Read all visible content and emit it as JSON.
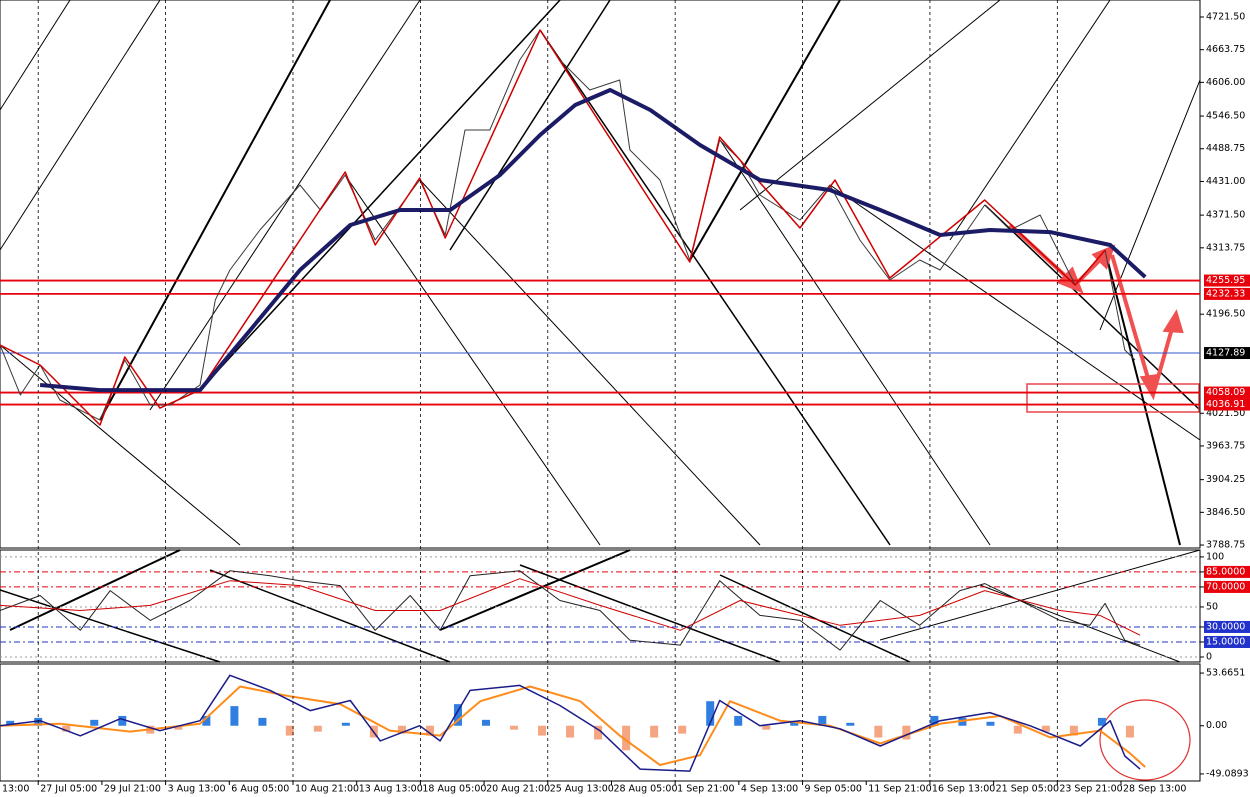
{
  "chart_data": [
    {
      "type": "line",
      "xlim": [
        -0.08,
        18.76
      ],
      "ylim": [
        3783.5,
        4751.5
      ],
      "yticks": [
        {
          "value": 4721.5,
          "label": "4721.50"
        },
        {
          "value": 4663.75,
          "label": "4663.75"
        },
        {
          "value": 4606,
          "label": "4606.00"
        },
        {
          "value": 4546.5,
          "label": "4546.50"
        },
        {
          "value": 4488.75,
          "label": "4488.75"
        },
        {
          "value": 4431,
          "label": "4431.00"
        },
        {
          "value": 4371.5,
          "label": "4371.50"
        },
        {
          "value": 4313.75,
          "label": "4313.75"
        },
        {
          "value": 4196.5,
          "label": "4196.50"
        },
        {
          "value": 4021.5,
          "label": "4021.50"
        },
        {
          "value": 3963.75,
          "label": "3963.75"
        },
        {
          "value": 3904.25,
          "label": "3904.25"
        },
        {
          "value": 3846.5,
          "label": "3846.50"
        },
        {
          "value": 3788.75,
          "label": "3788.75"
        }
      ],
      "lines": [
        {
          "value": 4255.95,
          "color": "#e8000b"
        },
        {
          "value": 4232.33,
          "color": "#e8000b"
        },
        {
          "value": 4127.89,
          "color": "#3355cc"
        },
        {
          "value": 4058.09,
          "color": "#e8000b"
        },
        {
          "value": 4036.91,
          "color": "#e8000b"
        }
      ],
      "series": [
        {
          "color": "#3a3a3a",
          "width": 1,
          "x": [
            -0.08,
            0.24,
            0.55,
            0.86,
            1.49,
            1.88,
            2.28,
            2.59,
            3.06,
            3.3,
            3.53,
            4.0,
            4.63,
            4.95,
            5.34,
            5.81,
            6.51,
            6.91,
            7.22,
            7.61,
            8.08,
            8.4,
            8.71,
            9.18,
            9.65,
            9.81,
            10.28,
            10.75,
            11.22,
            11.54,
            11.85,
            12.48,
            12.95,
            13.42,
            13.89,
            14.36,
            14.68,
            15.38,
            15.78,
            16.25,
            16.8,
            17.27,
            17.58,
            17.74
          ],
          "values": [
            4142.0,
            4053.7,
            4106.7,
            4044.9,
            4009.5,
            4115.5,
            4036.0,
            4036.0,
            4071.3,
            4221.5,
            4274.5,
            4345.2,
            4424.7,
            4380.5,
            4442.3,
            4327.5,
            4433.5,
            4336.4,
            4521.8,
            4521.8,
            4645.5,
            4698.5,
            4645.5,
            4592.5,
            4610.2,
            4486.5,
            4433.5,
            4292.2,
            4504.2,
            4468.8,
            4407.0,
            4362.9,
            4424.7,
            4327.5,
            4256.9,
            4292.2,
            4274.5,
            4389.4,
            4345.2,
            4371.7,
            4248.0,
            4309.8,
            4133.2,
            4115.5
          ]
        },
        {
          "color": "#d10000",
          "width": 1.5,
          "x": [
            -0.08,
            0.55,
            1.49,
            1.88,
            2.43,
            3.06,
            5.34,
            5.81,
            6.51,
            6.91,
            8.4,
            10.75,
            11.22,
            12.48,
            13.03,
            13.89,
            15.38,
            16.8,
            17.27
          ],
          "values": [
            4142.0,
            4106.7,
            4000.7,
            4120.8,
            4030.7,
            4062.5,
            4447.6,
            4318.7,
            4437.1,
            4331.1,
            4698.5,
            4288.7,
            4509.5,
            4348.7,
            4433.5,
            4260.4,
            4398.2,
            4248.0,
            4309.8
          ]
        },
        {
          "color": "#1b1b66",
          "width": 4,
          "x": [
            0.55,
            1.49,
            3.06,
            3.85,
            4.63,
            5.42,
            6.2,
            6.99,
            7.77,
            8.4,
            8.95,
            9.5,
            10.13,
            10.91,
            11.85,
            12.95,
            13.74,
            14.68,
            15.46,
            16.41,
            17.35,
            17.9
          ],
          "values": [
            4071.4,
            4062.5,
            4062.5,
            4168.5,
            4274.5,
            4354.0,
            4380.5,
            4380.5,
            4442.3,
            4513.0,
            4566.0,
            4592.5,
            4557.2,
            4495.3,
            4433.5,
            4415.8,
            4380.5,
            4336.4,
            4345.2,
            4341.6,
            4318.7,
            4262.2
          ]
        }
      ]
    },
    {
      "type": "line",
      "xlim": [
        -0.08,
        18.76
      ],
      "ylim": [
        -5,
        106.9
      ],
      "yticks": [
        100,
        {
          "value": 85,
          "label": "85.0000",
          "color": "#e8000b"
        },
        {
          "value": 70,
          "label": "70.0000",
          "color": "#e8000b"
        },
        50,
        {
          "value": 30,
          "label": "30.0000",
          "color": "#2233cc"
        },
        {
          "value": 15,
          "label": "15.0000",
          "color": "#2233cc"
        },
        0
      ],
      "series": [
        {
          "color": "#222222",
          "width": 1,
          "x": [
            -0.08,
            0.55,
            1.18,
            1.65,
            2.28,
            2.9,
            3.53,
            4.16,
            4.63,
            5.26,
            5.81,
            6.36,
            6.83,
            7.3,
            8.08,
            8.71,
            9.34,
            9.81,
            10.6,
            11.22,
            11.85,
            12.48,
            13.11,
            13.74,
            14.36,
            14.99,
            15.38,
            16.09,
            16.56,
            17.03,
            17.27,
            17.58,
            17.82
          ],
          "values": [
            46.5,
            61.4,
            26.7,
            66.3,
            36.6,
            56.4,
            86.1,
            81.2,
            76.2,
            71.3,
            26.7,
            61.4,
            26.7,
            81.2,
            86.1,
            56.4,
            46.5,
            16.8,
            11.9,
            76.2,
            41.6,
            36.6,
            6.9,
            56.4,
            31.7,
            66.3,
            73.3,
            51.5,
            36.6,
            31.7,
            53.5,
            16.8,
            11.9
          ]
        },
        {
          "color": "#d10000",
          "width": 1,
          "x": [
            -0.08,
            1.18,
            2.28,
            3.53,
            4.63,
            5.81,
            6.83,
            8.08,
            9.34,
            10.6,
            11.54,
            13.11,
            14.36,
            15.38,
            16.56,
            17.19,
            17.82
          ],
          "values": [
            51.5,
            46.5,
            51.5,
            76.2,
            71.3,
            46.5,
            46.5,
            78.2,
            51.5,
            26.7,
            56.4,
            31.7,
            41.6,
            66.3,
            46.5,
            41.6,
            21.8
          ]
        }
      ]
    },
    {
      "type": "macd",
      "xlim": [
        -0.08,
        18.76
      ],
      "ylim": [
        -56.3,
        62.9
      ],
      "yticks": [
        53.6651,
        {
          "value": 0,
          "label": "0.00"
        },
        -49.0893
      ],
      "xticks": [
        {
          "value": -0.48,
          "label": "13:00"
        },
        {
          "value": 0.52,
          "label": "27 Jul 05:00"
        },
        {
          "value": 1.52,
          "label": "29 Jul 21:00"
        },
        {
          "value": 2.52,
          "label": "3 Aug 13:00"
        },
        {
          "value": 3.52,
          "label": "6 Aug 05:00"
        },
        {
          "value": 4.52,
          "label": "10 Aug 21:00"
        },
        {
          "value": 5.52,
          "label": "13 Aug 13:00"
        },
        {
          "value": 6.52,
          "label": "18 Aug 05:00"
        },
        {
          "value": 7.52,
          "label": "20 Aug 21:00"
        },
        {
          "value": 8.52,
          "label": "25 Aug 13:00"
        },
        {
          "value": 9.52,
          "label": "28 Aug 05:00"
        },
        {
          "value": 10.52,
          "label": "1 Sep 21:00"
        },
        {
          "value": 11.52,
          "label": "4 Sep 13:00"
        },
        {
          "value": 12.52,
          "label": "9 Sep 05:00"
        },
        {
          "value": 13.52,
          "label": "11 Sep 21:00"
        },
        {
          "value": 14.52,
          "label": "16 Sep 13:00"
        },
        {
          "value": 15.52,
          "label": "21 Sep 05:00"
        },
        {
          "value": 16.52,
          "label": "23 Sep 21:00"
        },
        {
          "value": 17.52,
          "label": "28 Sep 13:00"
        }
      ],
      "histogram": {
        "color": "#2f7ee0",
        "negative_color": "#f4a582",
        "x": [
          0.08,
          0.52,
          0.96,
          1.4,
          1.84,
          2.28,
          2.72,
          3.16,
          3.6,
          4.04,
          4.47,
          4.91,
          5.35,
          5.79,
          6.23,
          6.67,
          7.11,
          7.55,
          7.99,
          8.43,
          8.87,
          9.31,
          9.75,
          10.19,
          10.63,
          11.07,
          11.51,
          11.95,
          12.39,
          12.83,
          13.27,
          13.71,
          14.15,
          14.59,
          15.03,
          15.47,
          15.9,
          16.34,
          16.78,
          17.22,
          17.66
        ],
        "values": [
          5,
          8,
          -6,
          6,
          10,
          -8,
          -4,
          10,
          20,
          8,
          -10,
          -6,
          3,
          -12,
          -8,
          -10,
          22,
          6,
          -4,
          -10,
          -12,
          -14,
          -25,
          -12,
          -8,
          25,
          10,
          -4,
          5,
          10,
          3,
          -12,
          -14,
          10,
          8,
          4,
          -8,
          -6,
          -10,
          8,
          -12
        ]
      },
      "series": [
        {
          "color": "#ff8c1a",
          "width": 2,
          "x": [
            -0.08,
            0.86,
            1.96,
            3.06,
            3.69,
            4.47,
            5.26,
            6.04,
            6.83,
            7.46,
            8.24,
            9.03,
            9.65,
            10.28,
            10.91,
            11.38,
            12.17,
            12.95,
            13.74,
            14.68,
            15.62,
            16.41,
            17.19,
            17.66,
            17.9
          ],
          "values": [
            0,
            2,
            -6,
            2,
            40,
            30,
            22,
            -5,
            -10,
            25,
            40,
            25,
            -10,
            -40,
            -30,
            25,
            5,
            0,
            -18,
            2,
            10,
            -12,
            -5,
            -28,
            -42
          ]
        },
        {
          "color": "#1b1b8a",
          "width": 1.5,
          "x": [
            -0.08,
            0.55,
            1.18,
            1.81,
            2.43,
            3.06,
            3.53,
            4.16,
            4.79,
            5.42,
            5.89,
            6.51,
            6.83,
            7.3,
            8.08,
            8.71,
            9.34,
            9.97,
            10.75,
            11.22,
            11.85,
            12.48,
            13.11,
            13.74,
            14.68,
            15.46,
            16.09,
            16.88,
            17.35,
            17.58,
            17.82
          ],
          "values": [
            0,
            5.1,
            -10.3,
            7.2,
            -5.1,
            5.1,
            51.4,
            36.0,
            15.4,
            25.7,
            -15.4,
            0,
            -15.4,
            36.0,
            41.1,
            20.6,
            -5.1,
            -44.2,
            -46.2,
            25.7,
            0,
            5.1,
            -3.1,
            -20.6,
            5.1,
            13.4,
            0,
            -20.6,
            5.1,
            -30.8,
            -44.2
          ]
        }
      ]
    }
  ]
}
